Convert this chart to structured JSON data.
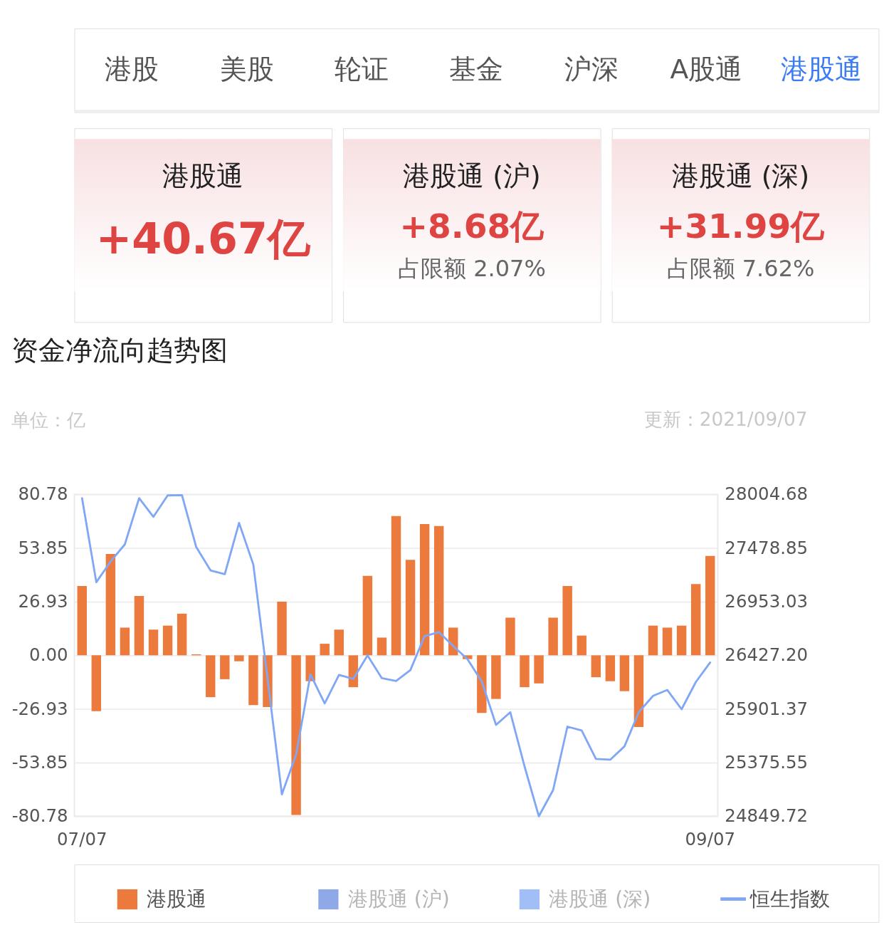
{
  "chart_data": [
    {
      "type": "other",
      "categories": [
        "港股",
        "美股",
        "轮证",
        "基金",
        "沪深",
        "A股通",
        "港股通"
      ],
      "colors": [
        "#555555",
        "#555555",
        "#555555",
        "#555555",
        "#555555",
        "#555555",
        "#3b7cf4"
      ]
    },
    {
      "type": "other",
      "title": "港股通",
      "annotations": [
        "+40.67亿"
      ]
    },
    {
      "type": "other",
      "title": "港股通 (沪)",
      "annotations": [
        "+8.68亿",
        "占限额 2.07%"
      ]
    },
    {
      "type": "other",
      "title": "港股通 (深)",
      "annotations": [
        "+31.99亿",
        "占限额 7.62%"
      ]
    },
    {
      "type": "bar",
      "title": "资金净流向趋势图",
      "ylabel": "单位：亿",
      "annotations": [
        "更新：2021/09/07"
      ],
      "categories": [
        "07/07",
        null,
        null,
        null,
        null,
        null,
        null,
        null,
        null,
        null,
        null,
        null,
        null,
        null,
        null,
        null,
        null,
        null,
        null,
        null,
        null,
        null,
        null,
        null,
        null,
        null,
        null,
        null,
        null,
        null,
        null,
        null,
        null,
        null,
        null,
        null,
        null,
        null,
        null,
        null,
        null,
        null,
        null,
        null,
        "09/07"
      ],
      "series": [
        {
          "name": "港股通",
          "type": "bar",
          "color": "#ed7a3d",
          "values": [
            34.8,
            -28.0,
            50.9,
            13.9,
            29.8,
            12.9,
            14.9,
            20.9,
            0.5,
            -21.0,
            -12.0,
            -3.0,
            -25.0,
            -26.0,
            26.9,
            -80.1,
            -13.0,
            5.8,
            12.9,
            -16.0,
            39.9,
            8.9,
            69.9,
            47.9,
            65.9,
            64.9,
            13.9,
            -1.9,
            -28.9,
            -21.9,
            18.9,
            -16.0,
            -14.1,
            18.9,
            34.8,
            9.9,
            -11.0,
            -13.0,
            -18.0,
            -36.0,
            14.9,
            13.9,
            14.9,
            35.8,
            49.9
          ]
        },
        {
          "name": "港股通 (沪)",
          "type": "bar",
          "color": "#8fa8e8",
          "values": [
            null,
            null,
            null,
            null,
            null,
            null,
            null,
            null,
            null,
            null,
            null,
            null,
            null,
            null,
            null,
            null,
            null,
            null,
            null,
            null,
            null,
            null,
            null,
            null,
            null,
            null,
            null,
            null,
            null,
            null,
            null,
            null,
            null,
            null,
            null,
            null,
            null,
            null,
            null,
            null,
            null,
            null,
            null,
            null,
            null
          ]
        },
        {
          "name": "港股通 (深)",
          "type": "bar",
          "color": "#a2bef7",
          "values": [
            null,
            null,
            null,
            null,
            null,
            null,
            null,
            null,
            null,
            null,
            null,
            null,
            null,
            null,
            null,
            null,
            null,
            null,
            null,
            null,
            null,
            null,
            null,
            null,
            null,
            null,
            null,
            null,
            null,
            null,
            null,
            null,
            null,
            null,
            null,
            null,
            null,
            null,
            null,
            null,
            null,
            null,
            null,
            null,
            null
          ]
        },
        {
          "name": "恒生指数",
          "type": "line",
          "axis": "y2",
          "color": "#80a7f6",
          "values": [
            27968,
            27144,
            27346,
            27515,
            27968,
            27785,
            27995,
            27997,
            27488,
            27260,
            27223,
            27725,
            27317,
            26193,
            25065,
            25455,
            26240,
            25956,
            26235,
            26196,
            26426,
            26203,
            26176,
            26282,
            26616,
            26654,
            26518,
            26389,
            26171,
            25745,
            25869,
            25337,
            24850,
            25107,
            25728,
            25691,
            25411,
            25404,
            25535,
            25869,
            26030,
            26087,
            25899,
            26166,
            26357
          ]
        }
      ],
      "ylim": [
        -80.78,
        80.78
      ],
      "yticks": [
        80.78,
        53.85,
        26.93,
        {
          "value": 0,
          "label": "0.00"
        },
        -26.93,
        -53.85,
        -80.78
      ],
      "y2lim": [
        24849.72,
        28004.68
      ],
      "y2ticks": [
        28004.68,
        27478.85,
        26953.03,
        {
          "value": 26427.2,
          "label": "26427.20"
        },
        25901.37,
        25375.55,
        24849.72
      ],
      "grid": "y",
      "legend": "bottom"
    }
  ]
}
